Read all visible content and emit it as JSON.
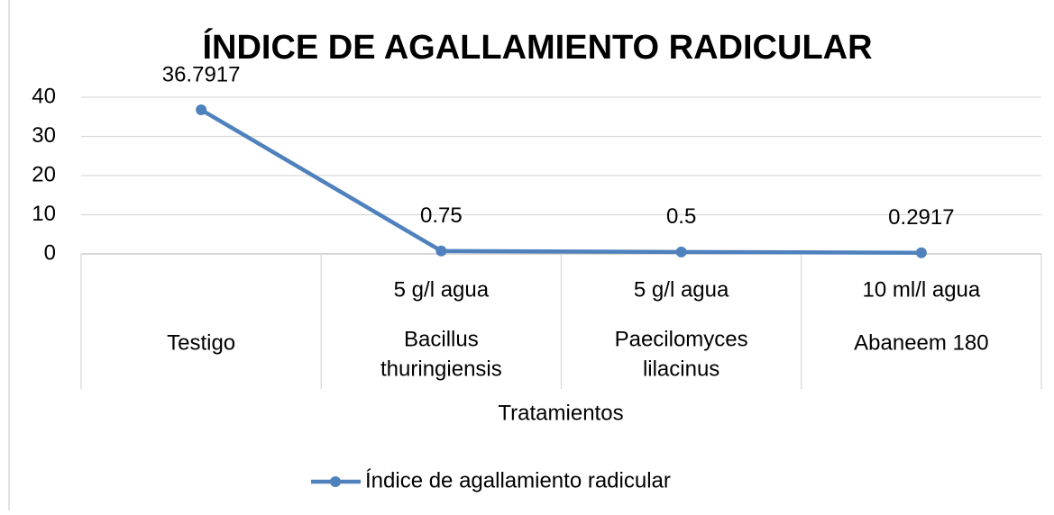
{
  "chart_data": {
    "type": "line",
    "title": "ÍNDICE DE AGALLAMIENTO RADICULAR",
    "x_label": "Tratamientos",
    "categories": [
      [
        "Testigo"
      ],
      [
        "Bacillus",
        "thuringiensis"
      ],
      [
        "Paecilomyces",
        "lilacinus"
      ],
      [
        "Abaneem 180"
      ]
    ],
    "subcategories": [
      null,
      "5 g/l agua",
      "5 g/l agua",
      "10 ml/l agua"
    ],
    "series": [
      {
        "name": "Índice de agallamiento radicular",
        "color": "#4f81bd",
        "values": [
          36.7917,
          0.75,
          0.5,
          0.2917
        ]
      }
    ],
    "ylim": [
      0,
      40
    ],
    "yticks": [
      0,
      10,
      20,
      30,
      40
    ],
    "grid": true,
    "data_labels": true,
    "legend": "bottom"
  }
}
